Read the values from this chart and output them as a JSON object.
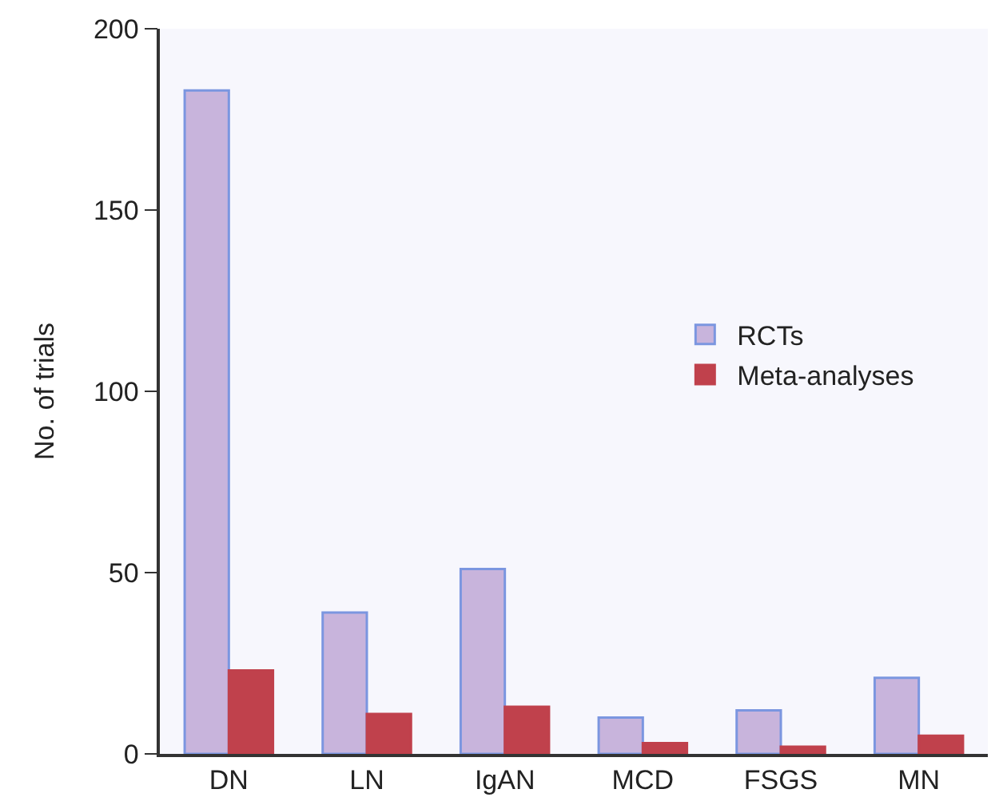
{
  "chart_data": {
    "type": "bar",
    "ylabel": "No. of trials",
    "categories": [
      "DN",
      "LN",
      "IgAN",
      "MCD",
      "FSGS",
      "MN"
    ],
    "series": [
      {
        "name": "RCTs",
        "color": "#c8b4dc",
        "values": [
          183,
          39,
          51,
          10,
          12,
          21
        ]
      },
      {
        "name": "Meta-analyses",
        "color": "#c0414c",
        "values": [
          23,
          11,
          13,
          3,
          2,
          5
        ]
      }
    ],
    "ylim": [
      0,
      200
    ],
    "yticks": [
      0,
      50,
      100,
      150,
      200
    ],
    "grid": false,
    "legend": "right"
  }
}
